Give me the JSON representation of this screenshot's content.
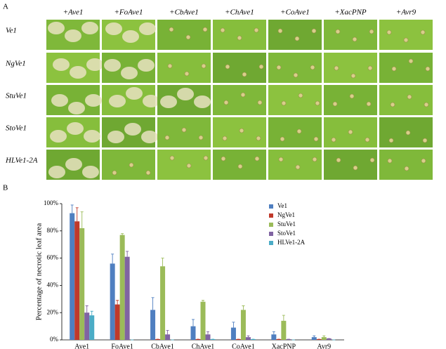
{
  "panel_a": {
    "label": "A",
    "columns": [
      "+Ave1",
      "+FoAve1",
      "+CbAve1",
      "+ChAve1",
      "+CoAve1",
      "+XacPNP",
      "+Avr9"
    ],
    "rows": [
      "Ve1",
      "NgVe1",
      "StuVe1",
      "StoVe1",
      "HLVe1-2A"
    ]
  },
  "chart_data": {
    "type": "bar",
    "label": "B",
    "y_label": "Percentage of necrotic leaf area",
    "categories": [
      "Ave1",
      "FoAve1",
      "CbAve1",
      "ChAve1",
      "CoAve1",
      "XacPNP",
      "Avr9"
    ],
    "series": [
      {
        "name": "Ve1",
        "color": "#4f7fc0",
        "values": [
          93,
          56,
          22,
          10,
          9,
          4,
          2
        ],
        "errors": [
          6,
          7,
          9,
          5,
          4,
          2,
          1
        ]
      },
      {
        "name": "NgVe1",
        "color": "#c0392b",
        "values": [
          87,
          26,
          0.5,
          0.5,
          0.5,
          0.5,
          0.5
        ],
        "errors": [
          10,
          3,
          0,
          0,
          0,
          0,
          0
        ]
      },
      {
        "name": "StuVe1",
        "color": "#9bbb59",
        "values": [
          82,
          77,
          54,
          28,
          22,
          14,
          2
        ],
        "errors": [
          12,
          1,
          6,
          1,
          3,
          4,
          1
        ]
      },
      {
        "name": "StoVe1",
        "color": "#8064a2",
        "values": [
          20,
          61,
          4,
          4,
          2,
          0.5,
          1
        ],
        "errors": [
          5,
          4,
          3,
          2,
          1,
          0,
          0
        ]
      },
      {
        "name": "HLVe1-2A",
        "color": "#4bacc6",
        "values": [
          18,
          0,
          0,
          0.5,
          0.5,
          0,
          0
        ],
        "errors": [
          3,
          0,
          0,
          0,
          0,
          0,
          0
        ]
      }
    ],
    "ylim": [
      0,
      100
    ],
    "yticks": [
      {
        "value": 0,
        "label": "0%"
      },
      {
        "value": 20,
        "label": "20%"
      },
      {
        "value": 40,
        "label": "40%"
      },
      {
        "value": 60,
        "label": "60%"
      },
      {
        "value": 80,
        "label": "80%"
      },
      {
        "value": 100,
        "label": "100%"
      }
    ],
    "legend": "upper right"
  }
}
